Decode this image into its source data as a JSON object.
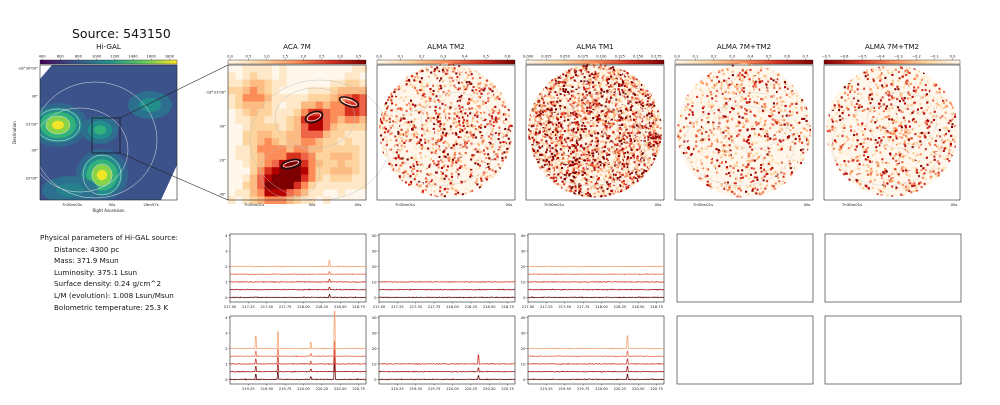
{
  "figure": {
    "title": "Source: 543150"
  },
  "params": {
    "heading": "Physical parameters of Hi-GAL source:",
    "rows": [
      "Distance: 4300 pc",
      "Mass: 371.9 Msun",
      "Luminosity: 375.1 Lsun",
      "Surface density: 0.24 g/cm^2",
      "L/M (evolution): 1.008 Lsun/Msun",
      "Bolometric temperature: 25.3 K"
    ]
  },
  "chart_data": [
    {
      "type": "heatmap",
      "title": "Hi-GAL",
      "colormap": "viridis",
      "colorbar_ticks": [
        "400",
        "600",
        "800",
        "1000",
        "1200",
        "1400",
        "1600",
        "1800"
      ],
      "xlabel": "Right Ascension",
      "ylabel": "Declination",
      "x_ticks": [
        "7h30m03s",
        "00s",
        "29m57s"
      ],
      "y_ticks": [
        "-18°30'00\"",
        "30\"",
        "31'00\"",
        "30\"",
        "32'00\""
      ]
    },
    {
      "type": "heatmap",
      "title": "ACA 7M",
      "colormap": "OrRd",
      "colorbar_ticks": [
        "0.0",
        "0.5",
        "1.0",
        "1.5",
        "2.0",
        "2.5",
        "3.0",
        "3.5"
      ],
      "x_ticks": [
        "7h30m01s",
        "00s",
        "00s"
      ],
      "y_ticks": [
        "-18°31'00\"",
        "30\"",
        "20\"",
        "30\""
      ]
    },
    {
      "type": "heatmap",
      "title": "ALMA TM2",
      "colormap": "OrRd",
      "colorbar_ticks": [
        "0.0",
        "0.1",
        "0.2",
        "0.3",
        "0.4",
        "0.5",
        "0.6"
      ],
      "x_ticks": [
        "7h30m01s",
        "00s"
      ]
    },
    {
      "type": "heatmap",
      "title": "ALMA TM1",
      "colormap": "OrRd",
      "colorbar_ticks": [
        "0.000",
        "0.025",
        "0.050",
        "0.075",
        "0.100",
        "0.125",
        "0.150",
        "0.175"
      ],
      "x_ticks": [
        "7h30m01s",
        "00s"
      ]
    },
    {
      "type": "heatmap",
      "title": "ALMA 7M+TM2",
      "colormap": "OrRd",
      "colorbar_ticks": [
        "0.0",
        "0.1",
        "0.2",
        "0.3",
        "0.4",
        "0.5",
        "0.6",
        "0.7"
      ],
      "x_ticks": [
        "7h30m01s",
        "00s"
      ]
    },
    {
      "type": "heatmap",
      "title": "ALMA 7M+TM2",
      "colormap": "OrRd",
      "colorbar_ticks": [
        "−0.7",
        "−0.6",
        "−0.5",
        "−0.4",
        "−0.3",
        "−0.2",
        "−0.1",
        "0.0"
      ],
      "x_ticks": [
        "7h30m01s",
        "00s"
      ]
    },
    {
      "type": "line",
      "panel": "ACA 7M spw1",
      "x_ticks": [
        "217.00",
        "217.25",
        "217.50",
        "217.75",
        "218.00",
        "218.25",
        "218.50",
        "218.75"
      ],
      "xlim": [
        217.0,
        218.85
      ],
      "ylim": [
        -0.3,
        4.1
      ],
      "y_ticks": [
        "0",
        "1",
        "2",
        "3",
        "4"
      ],
      "series": [
        {
          "offset": 0.0,
          "color": "#5a0000"
        },
        {
          "offset": 0.5,
          "color": "#9c1010"
        },
        {
          "offset": 1.0,
          "color": "#cc3322"
        },
        {
          "offset": 1.5,
          "color": "#e86a4a"
        },
        {
          "offset": 2.0,
          "color": "#f4a070"
        }
      ]
    },
    {
      "type": "line",
      "panel": "ALMA TM2 spw1",
      "x_ticks": [
        "217.00",
        "217.25",
        "217.50",
        "217.75",
        "218.00",
        "218.25",
        "218.50",
        "218.75"
      ],
      "xlim": [
        217.0,
        218.85
      ],
      "ylim": [
        -3,
        41
      ],
      "y_ticks": [
        "0",
        "10",
        "20",
        "30",
        "40"
      ],
      "series": [
        {
          "offset": 0,
          "color": "#5a0000"
        },
        {
          "offset": 5,
          "color": "#9c1010"
        },
        {
          "offset": 10,
          "color": "#cc3322"
        }
      ]
    },
    {
      "type": "line",
      "panel": "ALMA TM1 spw1",
      "x_ticks": [
        "217.00",
        "217.25",
        "217.50",
        "217.75",
        "218.00",
        "218.25",
        "218.50",
        "218.75"
      ],
      "xlim": [
        217.0,
        218.85
      ],
      "ylim": [
        -3,
        41
      ],
      "y_ticks": [
        "0",
        "10",
        "20",
        "30",
        "40"
      ],
      "series": [
        {
          "offset": 0,
          "color": "#5a0000"
        },
        {
          "offset": 5,
          "color": "#9c1010"
        },
        {
          "offset": 10,
          "color": "#cc3322"
        },
        {
          "offset": 15,
          "color": "#e86a4a"
        },
        {
          "offset": 20,
          "color": "#f4a070"
        }
      ]
    },
    {
      "type": "line",
      "panel": "ACA 7M spw2",
      "x_ticks": [
        "219.25",
        "219.50",
        "219.75",
        "220.00",
        "220.25",
        "220.50",
        "220.75"
      ],
      "xlim": [
        219.0,
        220.85
      ],
      "ylim": [
        -0.3,
        4.1
      ],
      "y_ticks": [
        "0",
        "1",
        "2",
        "3",
        "4"
      ],
      "series": [
        {
          "offset": 0.0,
          "color": "#5a0000"
        },
        {
          "offset": 0.5,
          "color": "#9c1010"
        },
        {
          "offset": 1.0,
          "color": "#cc3322"
        },
        {
          "offset": 1.5,
          "color": "#e86a4a"
        },
        {
          "offset": 2.0,
          "color": "#f4a070"
        }
      ]
    },
    {
      "type": "line",
      "panel": "ALMA TM2 spw2",
      "x_ticks": [
        "219.25",
        "219.50",
        "219.75",
        "220.00",
        "220.25",
        "220.50",
        "220.75"
      ],
      "xlim": [
        219.0,
        220.85
      ],
      "ylim": [
        -3,
        41
      ],
      "y_ticks": [
        "0",
        "10",
        "20",
        "30",
        "40"
      ],
      "series": [
        {
          "offset": 0,
          "color": "#5a0000"
        },
        {
          "offset": 5,
          "color": "#9c1010"
        },
        {
          "offset": 10,
          "color": "#cc3322"
        }
      ]
    },
    {
      "type": "line",
      "panel": "ALMA TM1 spw2",
      "x_ticks": [
        "219.25",
        "219.50",
        "219.75",
        "220.00",
        "220.25",
        "220.50",
        "220.75"
      ],
      "xlim": [
        219.0,
        220.85
      ],
      "ylim": [
        -3,
        41
      ],
      "y_ticks": [
        "0",
        "10",
        "20",
        "30",
        "40"
      ],
      "series": [
        {
          "offset": 0,
          "color": "#5a0000"
        },
        {
          "offset": 5,
          "color": "#9c1010"
        },
        {
          "offset": 10,
          "color": "#cc3322"
        },
        {
          "offset": 15,
          "color": "#e86a4a"
        },
        {
          "offset": 20,
          "color": "#f4a070"
        }
      ]
    }
  ]
}
